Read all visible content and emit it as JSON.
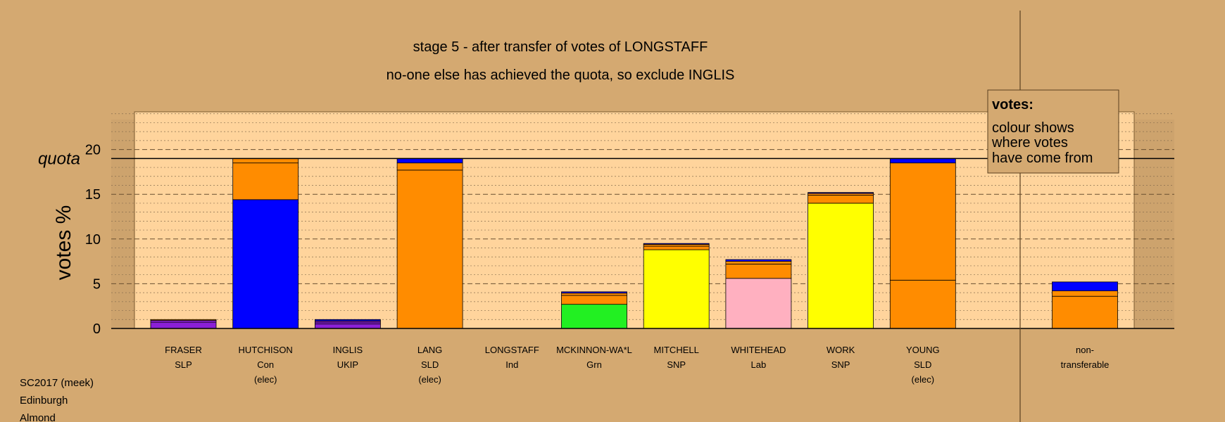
{
  "chart_data": {
    "type": "bar",
    "stacked": true,
    "title": "stage 5 - after transfer of votes of LONGSTAFF",
    "subtitle": "no-one else has achieved the quota, so exclude INGLIS",
    "ylabel": "votes %",
    "ylim": [
      0,
      24
    ],
    "yticks": [
      "0",
      "5",
      "10",
      "15",
      "20"
    ],
    "quota": {
      "label": "quota",
      "value": 19.0
    },
    "grid": true,
    "candidates": [
      {
        "name": "FRASER",
        "party": "SLP",
        "status": ""
      },
      {
        "name": "HUTCHISON",
        "party": "Con",
        "status": "(elec)"
      },
      {
        "name": "INGLIS",
        "party": "UKIP",
        "status": ""
      },
      {
        "name": "LANG",
        "party": "SLD",
        "status": "(elec)"
      },
      {
        "name": "LONGSTAFF",
        "party": "Ind",
        "status": ""
      },
      {
        "name": "MCKINNON-WA*L",
        "party": "Grn",
        "status": ""
      },
      {
        "name": "MITCHELL",
        "party": "SNP",
        "status": ""
      },
      {
        "name": "WHITEHEAD",
        "party": "Lab",
        "status": ""
      },
      {
        "name": "WORK",
        "party": "SNP",
        "status": ""
      },
      {
        "name": "YOUNG",
        "party": "SLD",
        "status": "(elec)"
      }
    ],
    "non_transferable": {
      "line1": "non-",
      "line2": "transferable"
    },
    "stacks": [
      [
        {
          "value": 0.7,
          "color": "#8B1FD6"
        },
        {
          "value": 0.2,
          "color": "#8B1FD6"
        },
        {
          "value": 0.1,
          "color": "#FF8C00"
        }
      ],
      [
        {
          "value": 14.4,
          "color": "#0000FF"
        },
        {
          "value": 4.1,
          "color": "#FF8C00"
        },
        {
          "value": 0.5,
          "color": "#FF8C00"
        }
      ],
      [
        {
          "value": 0.5,
          "color": "#8B1FD6"
        },
        {
          "value": 0.2,
          "color": "#8B1FD6"
        },
        {
          "value": 0.15,
          "color": "#8B1FD6"
        },
        {
          "value": 0.15,
          "color": "#0000FF"
        }
      ],
      [
        {
          "value": 17.7,
          "color": "#FF8C00"
        },
        {
          "value": 0.8,
          "color": "#FF8C00"
        },
        {
          "value": 0.5,
          "color": "#0000FF"
        }
      ],
      [],
      [
        {
          "value": 2.7,
          "color": "#22F022"
        },
        {
          "value": 1.0,
          "color": "#FF8C00"
        },
        {
          "value": 0.25,
          "color": "#FF8C00"
        },
        {
          "value": 0.15,
          "color": "#0000FF"
        }
      ],
      [
        {
          "value": 8.8,
          "color": "#FFFF00"
        },
        {
          "value": 0.4,
          "color": "#FF8C00"
        },
        {
          "value": 0.2,
          "color": "#FF8C00"
        },
        {
          "value": 0.1,
          "color": "#0000FF"
        }
      ],
      [
        {
          "value": 5.6,
          "color": "#FFB0C0"
        },
        {
          "value": 1.6,
          "color": "#FF8C00"
        },
        {
          "value": 0.3,
          "color": "#FF8C00"
        },
        {
          "value": 0.2,
          "color": "#0000FF"
        }
      ],
      [
        {
          "value": 14.0,
          "color": "#FFFF00"
        },
        {
          "value": 0.9,
          "color": "#FF8C00"
        },
        {
          "value": 0.2,
          "color": "#FF8C00"
        },
        {
          "value": 0.1,
          "color": "#0000FF"
        }
      ],
      [
        {
          "value": 5.4,
          "color": "#FF8C00"
        },
        {
          "value": 13.1,
          "color": "#FF8C00"
        },
        {
          "value": 0.5,
          "color": "#0000FF"
        }
      ]
    ],
    "non_transferable_stack": [
      {
        "value": 3.6,
        "color": "#FF8C00"
      },
      {
        "value": 0.6,
        "color": "#FF8C00"
      },
      {
        "value": 1.0,
        "color": "#0000FF"
      }
    ]
  },
  "legend": {
    "heading": "votes:",
    "lines": [
      "colour shows",
      "where votes",
      "have come from"
    ]
  },
  "footer": {
    "line1": "SC2017 (meek)",
    "line2": "Edinburgh",
    "line3": "Almond"
  },
  "colors": {
    "background": "#D4A971",
    "plot_panel": "#FFD49C",
    "outer_band": "#BF9966"
  }
}
